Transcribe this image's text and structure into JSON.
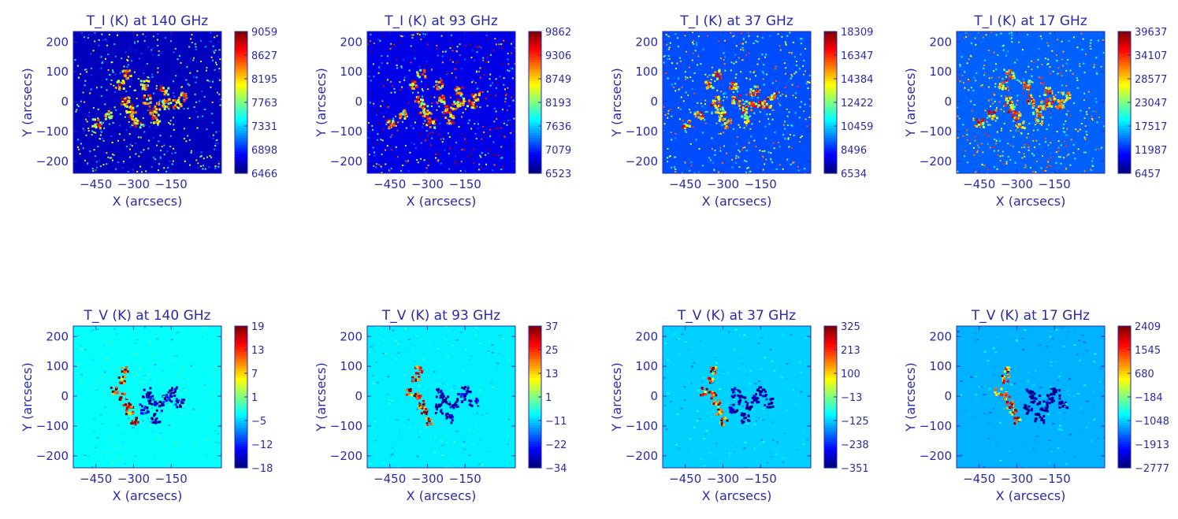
{
  "figure": {
    "colors": {
      "text": "#2a2aa8",
      "axis": "#2a2aa8",
      "colormap": [
        "#00007f",
        "#0000ff",
        "#007fff",
        "#00ffff",
        "#7fff7f",
        "#ffff00",
        "#ff7f00",
        "#ff0000",
        "#7f0000"
      ]
    }
  },
  "chart_data": [
    {
      "type": "heatmap",
      "title": "T_I (K) at 140 GHz",
      "xlabel": "X (arcsecs)",
      "ylabel": "Y (arcsecs)",
      "xticks": [
        -450,
        -300,
        -150
      ],
      "yticks": [
        200,
        100,
        0,
        -100,
        -200
      ],
      "xlim": [
        -540,
        50
      ],
      "ylim": [
        -240,
        235
      ],
      "colorbar": {
        "ticks": [
          "9059",
          "8627",
          "8195",
          "7763",
          "7331",
          "6898",
          "6466"
        ],
        "min": 6466,
        "max": 9059
      },
      "colormap": "jet",
      "map": "intensity",
      "background_level": 0.06
    },
    {
      "type": "heatmap",
      "title": "T_I (K) at 93 GHz",
      "xlabel": "X (arcsecs)",
      "ylabel": "Y (arcsecs)",
      "xticks": [
        -450,
        -300,
        -150
      ],
      "yticks": [
        200,
        100,
        0,
        -100,
        -200
      ],
      "xlim": [
        -540,
        50
      ],
      "ylim": [
        -240,
        235
      ],
      "colorbar": {
        "ticks": [
          "9862",
          "9306",
          "8749",
          "8193",
          "7636",
          "7079",
          "6523"
        ],
        "min": 6523,
        "max": 9862
      },
      "colormap": "jet",
      "map": "intensity",
      "background_level": 0.1
    },
    {
      "type": "heatmap",
      "title": "T_I (K) at 37 GHz",
      "xlabel": "X (arcsecs)",
      "ylabel": "Y (arcsecs)",
      "xticks": [
        -450,
        -300,
        -150
      ],
      "yticks": [
        200,
        100,
        0,
        -100,
        -200
      ],
      "xlim": [
        -540,
        50
      ],
      "ylim": [
        -240,
        235
      ],
      "colorbar": {
        "ticks": [
          "18309",
          "16347",
          "14384",
          "12422",
          "10459",
          "8496",
          "6534"
        ],
        "min": 6534,
        "max": 18309
      },
      "colormap": "jet",
      "map": "intensity",
      "background_level": 0.2
    },
    {
      "type": "heatmap",
      "title": "T_I (K) at 17 GHz",
      "xlabel": "X (arcsecs)",
      "ylabel": "Y (arcsecs)",
      "xticks": [
        -450,
        -300,
        -150
      ],
      "yticks": [
        200,
        100,
        0,
        -100,
        -200
      ],
      "xlim": [
        -540,
        50
      ],
      "ylim": [
        -240,
        235
      ],
      "colorbar": {
        "ticks": [
          "39637",
          "34107",
          "28577",
          "23047",
          "17517",
          "11987",
          "6457"
        ],
        "min": 6457,
        "max": 39637
      },
      "colormap": "jet",
      "map": "intensity",
      "background_level": 0.22
    },
    {
      "type": "heatmap",
      "title": "T_V (K) at 140 GHz",
      "xlabel": "X (arcsecs)",
      "ylabel": "Y (arcsecs)",
      "xticks": [
        -450,
        -300,
        -150
      ],
      "yticks": [
        200,
        100,
        0,
        -100,
        -200
      ],
      "xlim": [
        -540,
        50
      ],
      "ylim": [
        -240,
        235
      ],
      "colorbar": {
        "ticks": [
          "19",
          "13",
          "7",
          "1",
          "-5",
          "-12",
          "-18"
        ],
        "min": -18,
        "max": 19
      },
      "colormap": "jet",
      "map": "polarization",
      "background_level": 0.38
    },
    {
      "type": "heatmap",
      "title": "T_V (K) at 93 GHz",
      "xlabel": "X (arcsecs)",
      "ylabel": "Y (arcsecs)",
      "xticks": [
        -450,
        -300,
        -150
      ],
      "yticks": [
        200,
        100,
        0,
        -100,
        -200
      ],
      "xlim": [
        -540,
        50
      ],
      "ylim": [
        -240,
        235
      ],
      "colorbar": {
        "ticks": [
          "37",
          "25",
          "13",
          "1",
          "-11",
          "-22",
          "-34"
        ],
        "min": -34,
        "max": 37
      },
      "colormap": "jet",
      "map": "polarization",
      "background_level": 0.36
    },
    {
      "type": "heatmap",
      "title": "T_V (K) at 37 GHz",
      "xlabel": "X (arcsecs)",
      "ylabel": "Y (arcsecs)",
      "xticks": [
        -450,
        -300,
        -150
      ],
      "yticks": [
        200,
        100,
        0,
        -100,
        -200
      ],
      "xlim": [
        -540,
        50
      ],
      "ylim": [
        -240,
        235
      ],
      "colorbar": {
        "ticks": [
          "325",
          "213",
          "100",
          "-13",
          "-125",
          "-238",
          "-351"
        ],
        "min": -351,
        "max": 325
      },
      "colormap": "jet",
      "map": "polarization",
      "background_level": 0.33
    },
    {
      "type": "heatmap",
      "title": "T_V (K) at 17 GHz",
      "xlabel": "X (arcsecs)",
      "ylabel": "Y (arcsecs)",
      "xticks": [
        -450,
        -300,
        -150
      ],
      "yticks": [
        200,
        100,
        0,
        -100,
        -200
      ],
      "xlim": [
        -540,
        50
      ],
      "ylim": [
        -240,
        235
      ],
      "colorbar": {
        "ticks": [
          "2409",
          "1545",
          "680",
          "-184",
          "-1048",
          "-1913",
          "-2777"
        ],
        "min": -2777,
        "max": 2409
      },
      "colormap": "jet",
      "map": "polarization",
      "background_level": 0.3
    }
  ]
}
